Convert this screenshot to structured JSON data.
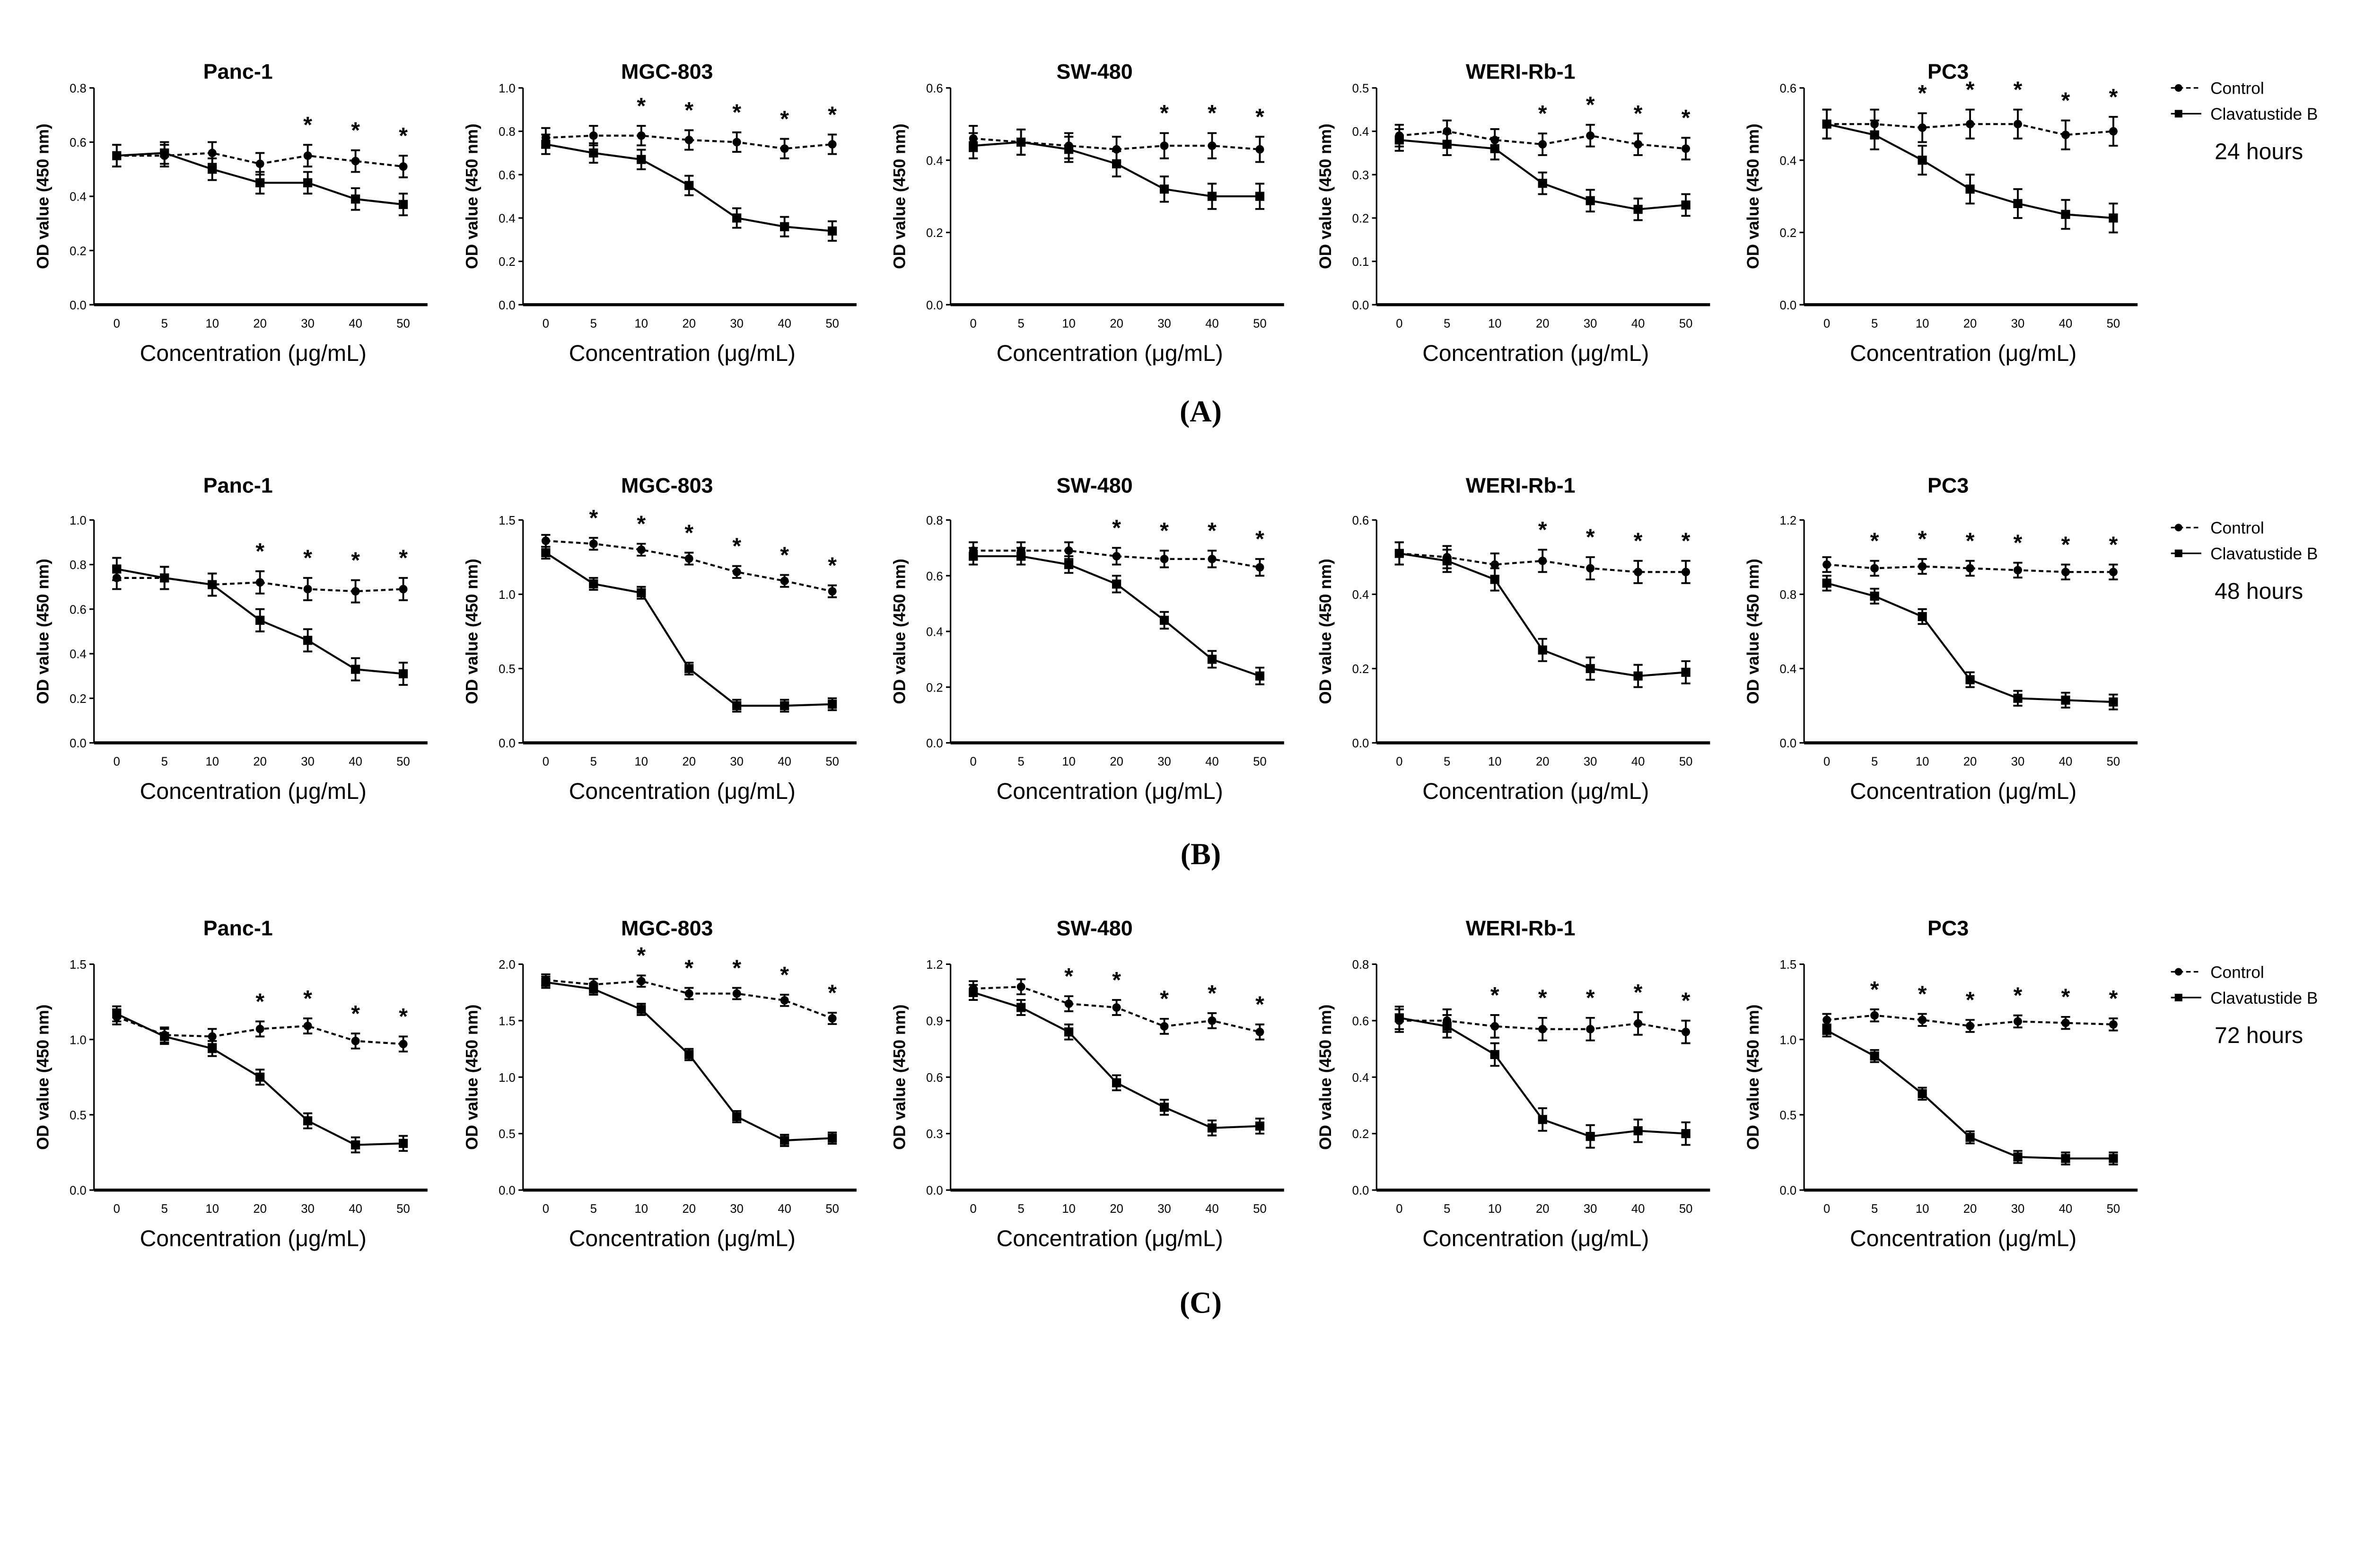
{
  "chart_data": {
    "type": "line",
    "x": [
      0,
      5,
      10,
      20,
      30,
      40,
      50
    ],
    "xlabel": "Concentration (μg/mL)",
    "ylabel": "OD value (450 nm)",
    "legend": [
      "Control",
      "Clavatustide B"
    ],
    "rows": [
      {
        "label": "(A)",
        "time": "24 hours",
        "panels": [
          {
            "title": "Panc-1",
            "ylim": [
              0,
              0.8
            ],
            "yticks": [
              "0.0",
              "0.2",
              "0.4",
              "0.6",
              "0.8"
            ],
            "err": 0.04,
            "control": [
              0.55,
              0.55,
              0.56,
              0.52,
              0.55,
              0.53,
              0.51
            ],
            "clavatustide": [
              0.55,
              0.56,
              0.5,
              0.45,
              0.45,
              0.39,
              0.37
            ],
            "stars": [
              30,
              40,
              50
            ]
          },
          {
            "title": "MGC-803",
            "ylim": [
              0,
              1.0
            ],
            "yticks": [
              "0.0",
              "0.2",
              "0.4",
              "0.6",
              "0.8",
              "1.0"
            ],
            "err": 0.045,
            "control": [
              0.77,
              0.78,
              0.78,
              0.76,
              0.75,
              0.72,
              0.74
            ],
            "clavatustide": [
              0.74,
              0.7,
              0.67,
              0.55,
              0.4,
              0.36,
              0.34
            ],
            "stars": [
              10,
              20,
              30,
              40,
              50
            ]
          },
          {
            "title": "SW-480",
            "ylim": [
              0,
              0.6
            ],
            "yticks": [
              "0.0",
              "0.2",
              "0.4",
              "0.6"
            ],
            "err": 0.035,
            "control": [
              0.46,
              0.45,
              0.44,
              0.43,
              0.44,
              0.44,
              0.43
            ],
            "clavatustide": [
              0.44,
              0.45,
              0.43,
              0.39,
              0.32,
              0.3,
              0.3
            ],
            "stars": [
              30,
              40,
              50
            ]
          },
          {
            "title": "WERI-Rb-1",
            "ylim": [
              0,
              0.5
            ],
            "yticks": [
              "0.0",
              "0.1",
              "0.2",
              "0.3",
              "0.4",
              "0.5"
            ],
            "err": 0.025,
            "control": [
              0.39,
              0.4,
              0.38,
              0.37,
              0.39,
              0.37,
              0.36
            ],
            "clavatustide": [
              0.38,
              0.37,
              0.36,
              0.28,
              0.24,
              0.22,
              0.23
            ],
            "stars": [
              20,
              30,
              40,
              50
            ]
          },
          {
            "title": "PC3",
            "ylim": [
              0,
              0.6
            ],
            "yticks": [
              "0.0",
              "0.2",
              "0.4",
              "0.6"
            ],
            "err": 0.04,
            "control": [
              0.5,
              0.5,
              0.49,
              0.5,
              0.5,
              0.47,
              0.48
            ],
            "clavatustide": [
              0.5,
              0.47,
              0.4,
              0.32,
              0.28,
              0.25,
              0.24
            ],
            "stars": [
              10,
              20,
              30,
              40,
              50
            ]
          }
        ]
      },
      {
        "label": "(B)",
        "time": "48 hours",
        "panels": [
          {
            "title": "Panc-1",
            "ylim": [
              0,
              1.0
            ],
            "yticks": [
              "0.0",
              "0.2",
              "0.4",
              "0.6",
              "0.8",
              "1.0"
            ],
            "err": 0.05,
            "control": [
              0.74,
              0.74,
              0.71,
              0.72,
              0.69,
              0.68,
              0.69
            ],
            "clavatustide": [
              0.78,
              0.74,
              0.71,
              0.55,
              0.46,
              0.33,
              0.31
            ],
            "stars": [
              20,
              30,
              40,
              50
            ]
          },
          {
            "title": "MGC-803",
            "ylim": [
              0,
              1.5
            ],
            "yticks": [
              "0.0",
              "0.5",
              "1.0",
              "1.5"
            ],
            "err": 0.04,
            "control": [
              1.36,
              1.34,
              1.3,
              1.24,
              1.15,
              1.09,
              1.02
            ],
            "clavatustide": [
              1.28,
              1.07,
              1.01,
              0.5,
              0.25,
              0.25,
              0.26
            ],
            "stars": [
              5,
              10,
              20,
              30,
              40,
              50
            ]
          },
          {
            "title": "SW-480",
            "ylim": [
              0,
              0.8
            ],
            "yticks": [
              "0.0",
              "0.2",
              "0.4",
              "0.6",
              "0.8"
            ],
            "err": 0.03,
            "control": [
              0.69,
              0.69,
              0.69,
              0.67,
              0.66,
              0.66,
              0.63
            ],
            "clavatustide": [
              0.67,
              0.67,
              0.64,
              0.57,
              0.44,
              0.3,
              0.24
            ],
            "stars": [
              20,
              30,
              40,
              50
            ]
          },
          {
            "title": "WERI-Rb-1",
            "ylim": [
              0,
              0.6
            ],
            "yticks": [
              "0.0",
              "0.2",
              "0.4",
              "0.6"
            ],
            "err": 0.03,
            "control": [
              0.51,
              0.5,
              0.48,
              0.49,
              0.47,
              0.46,
              0.46
            ],
            "clavatustide": [
              0.51,
              0.49,
              0.44,
              0.25,
              0.2,
              0.18,
              0.19
            ],
            "stars": [
              20,
              30,
              40,
              50
            ]
          },
          {
            "title": "PC3",
            "ylim": [
              0,
              1.2
            ],
            "yticks": [
              "0.0",
              "0.4",
              "0.8",
              "1.2"
            ],
            "err": 0.04,
            "control": [
              0.96,
              0.94,
              0.95,
              0.94,
              0.93,
              0.92,
              0.92
            ],
            "clavatustide": [
              0.86,
              0.79,
              0.68,
              0.34,
              0.24,
              0.23,
              0.22
            ],
            "stars": [
              5,
              10,
              20,
              30,
              40,
              50
            ]
          }
        ]
      },
      {
        "label": "(C)",
        "time": "72 hours",
        "panels": [
          {
            "title": "Panc-1",
            "ylim": [
              0,
              1.5
            ],
            "yticks": [
              "0.0",
              "0.5",
              "1.0",
              "1.5"
            ],
            "err": 0.05,
            "control": [
              1.15,
              1.03,
              1.02,
              1.07,
              1.09,
              0.99,
              0.97
            ],
            "clavatustide": [
              1.17,
              1.02,
              0.94,
              0.75,
              0.46,
              0.3,
              0.31
            ],
            "stars": [
              20,
              30,
              40,
              50
            ]
          },
          {
            "title": "MGC-803",
            "ylim": [
              0,
              2.0
            ],
            "yticks": [
              "0.0",
              "0.5",
              "1.0",
              "1.5",
              "2.0"
            ],
            "err": 0.05,
            "control": [
              1.86,
              1.82,
              1.85,
              1.74,
              1.74,
              1.68,
              1.52
            ],
            "clavatustide": [
              1.84,
              1.78,
              1.6,
              1.2,
              0.65,
              0.44,
              0.46
            ],
            "stars": [
              10,
              20,
              30,
              40,
              50
            ]
          },
          {
            "title": "SW-480",
            "ylim": [
              0,
              1.2
            ],
            "yticks": [
              "0.0",
              "0.3",
              "0.6",
              "0.9",
              "1.2"
            ],
            "err": 0.04,
            "control": [
              1.07,
              1.08,
              0.99,
              0.97,
              0.87,
              0.9,
              0.84
            ],
            "clavatustide": [
              1.05,
              0.97,
              0.84,
              0.57,
              0.44,
              0.33,
              0.34
            ],
            "stars": [
              10,
              20,
              30,
              40,
              50
            ]
          },
          {
            "title": "WERI-Rb-1",
            "ylim": [
              0,
              0.8
            ],
            "yticks": [
              "0.0",
              "0.2",
              "0.4",
              "0.6",
              "0.8"
            ],
            "err": 0.04,
            "control": [
              0.6,
              0.6,
              0.58,
              0.57,
              0.57,
              0.59,
              0.56
            ],
            "clavatustide": [
              0.61,
              0.58,
              0.48,
              0.25,
              0.19,
              0.21,
              0.2
            ],
            "stars": [
              10,
              20,
              30,
              40,
              50
            ]
          },
          {
            "title": "PC3",
            "ylim": [
              0,
              1.5
            ],
            "yticks": [
              "0.0",
              "0.5",
              "1.0",
              "1.5"
            ],
            "err": 0.04,
            "control": [
              1.13,
              1.16,
              1.13,
              1.09,
              1.12,
              1.11,
              1.1
            ],
            "clavatustide": [
              1.06,
              0.89,
              0.64,
              0.35,
              0.22,
              0.21,
              0.21
            ],
            "stars": [
              5,
              10,
              20,
              30,
              40,
              50
            ]
          }
        ]
      }
    ]
  }
}
